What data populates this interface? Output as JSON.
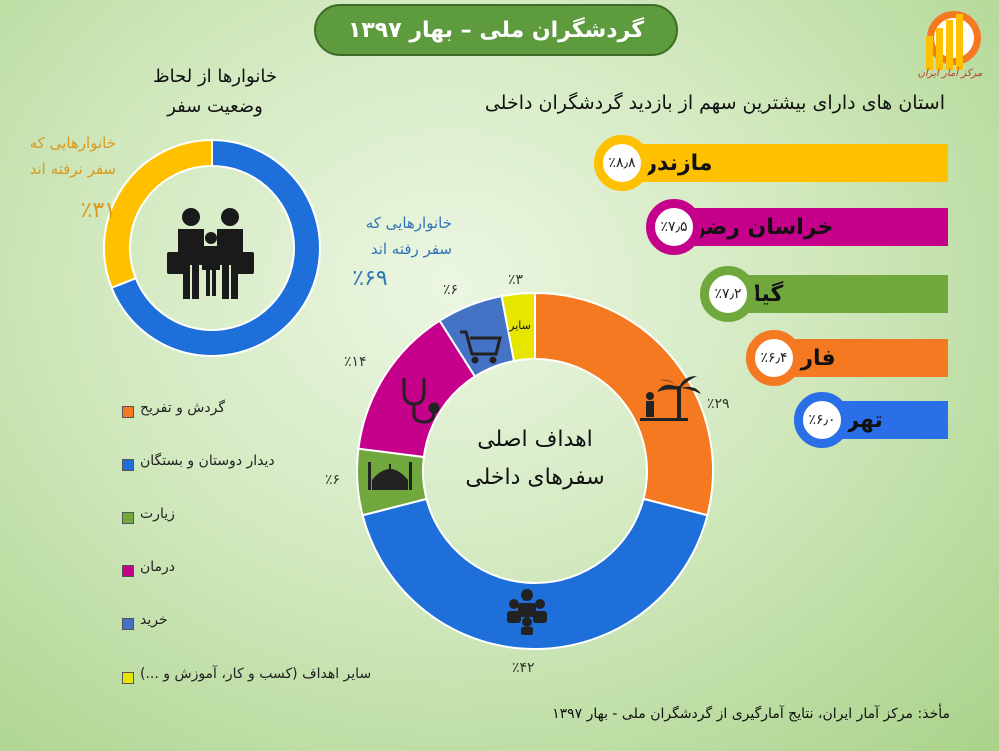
{
  "title": "گردشگران ملی – بهار ۱۳۹۷",
  "logo": {
    "text": "مرکز آمار ایران"
  },
  "family_chart": {
    "title_line1": "خانوارها از لحاظ",
    "title_line2": "وضعیت سفر",
    "no_travel_line1": "خانوارهایی که",
    "no_travel_line2": "سفر نرفته اند",
    "no_travel_pct": "٪۳۱",
    "travel_line1": "خانوارهایی که",
    "travel_line2": "سفر رفته اند",
    "travel_pct": "٪۶۹"
  },
  "provinces": {
    "title": "استان های دارای بیشترین سهم از بازدید گردشگران داخلی",
    "items": [
      {
        "name": "مازندران",
        "pct": "٪۸٫۸",
        "color": "#ffc000"
      },
      {
        "name": "خراسان رضوی",
        "pct": "٪۷٫۵",
        "color": "#c5008a"
      },
      {
        "name": "گیلان",
        "pct": "٪۷٫۲",
        "color": "#70a83d"
      },
      {
        "name": "فارس",
        "pct": "٪۶٫۴",
        "color": "#f47920"
      },
      {
        "name": "تهران",
        "pct": "٪۶٫۰",
        "color": "#2a6ee8"
      }
    ]
  },
  "purpose_chart": {
    "center_line1": "اهداف اصلی",
    "center_line2": "سفرهای داخلی",
    "other_short": "سایر"
  },
  "legend": [
    {
      "label": "گردش و تفریح",
      "color": "#f47920"
    },
    {
      "label": "دیدار دوستان و بستگان",
      "color": "#1e6fd9"
    },
    {
      "label": "زیارت",
      "color": "#70a83d"
    },
    {
      "label": "درمان",
      "color": "#c5008a"
    },
    {
      "label": "خرید",
      "color": "#4472c4"
    },
    {
      "label": "سایر اهداف (کسب و کار، آموزش و ...)",
      "color": "#e6e600"
    }
  ],
  "source": "مأخذ: مرکز آمار ایران، نتایج آمارگیری از گردشگران ملی - بهار ۱۳۹۷",
  "chart_data": [
    {
      "type": "pie",
      "categories": [
        "خانوارهایی که سفر رفته اند",
        "خانوارهایی که سفر نرفته اند"
      ],
      "values": [
        69,
        31
      ],
      "colors": [
        "#1e6fd9",
        "#ffc000"
      ]
    },
    {
      "type": "pie",
      "categories": [
        "گردش و تفریح",
        "دیدار دوستان و بستگان",
        "زیارت",
        "درمان",
        "خرید",
        "سایر اهداف (کسب و کار، آموزش و ...)"
      ],
      "values": [
        29,
        42,
        6,
        14,
        6,
        3
      ],
      "value_labels": [
        "٪۲۹",
        "٪۴۲",
        "٪۶",
        "٪۱۴",
        "٪۶",
        "٪۳"
      ],
      "colors": [
        "#f47920",
        "#1e6fd9",
        "#70a83d",
        "#c5008a",
        "#4472c4",
        "#e6e600"
      ]
    },
    {
      "type": "bar",
      "categories": [
        "مازندران",
        "خراسان رضوی",
        "گیلان",
        "فارس",
        "تهران"
      ],
      "values": [
        8.8,
        7.5,
        7.2,
        6.4,
        6.0
      ]
    }
  ]
}
